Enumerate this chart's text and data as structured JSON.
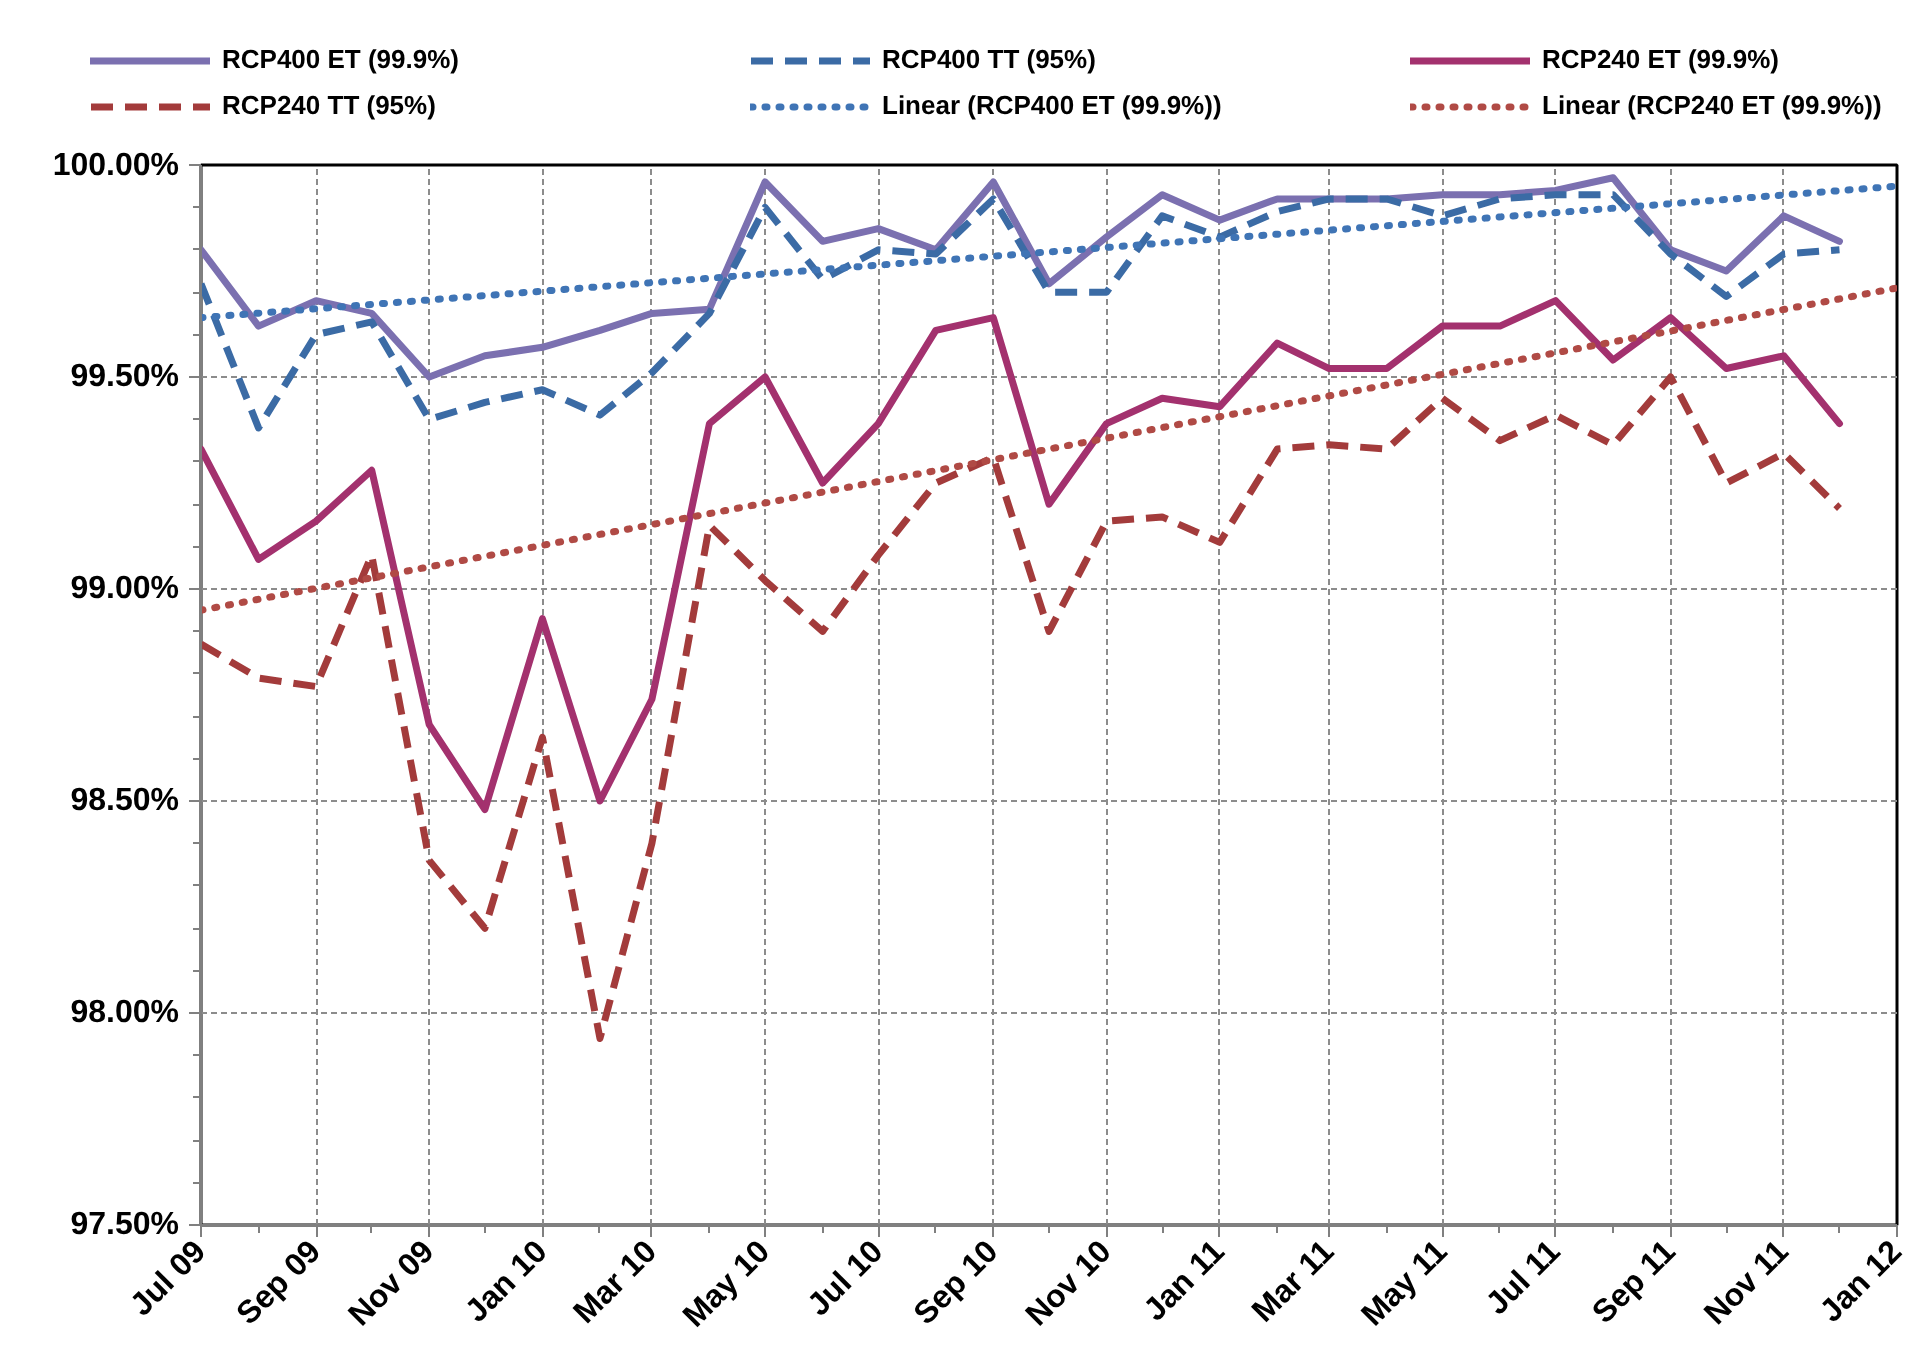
{
  "chart_data": {
    "type": "line",
    "x": [
      "2009-07",
      "2009-08",
      "2009-09",
      "2009-10",
      "2009-11",
      "2009-12",
      "2010-01",
      "2010-02",
      "2010-03",
      "2010-04",
      "2010-05",
      "2010-06",
      "2010-07",
      "2010-08",
      "2010-09",
      "2010-10",
      "2010-11",
      "2010-12",
      "2011-01",
      "2011-02",
      "2011-03",
      "2011-04",
      "2011-05",
      "2011-06",
      "2011-07",
      "2011-08",
      "2011-09",
      "2011-10",
      "2011-11",
      "2011-12"
    ],
    "xlim": [
      "2009-07",
      "2012-01"
    ],
    "xticks": [
      {
        "value": "2009-07",
        "label": "Jul 09"
      },
      {
        "value": "2009-08",
        "label": null
      },
      {
        "value": "2009-09",
        "label": "Sep 09"
      },
      {
        "value": "2009-10",
        "label": null
      },
      {
        "value": "2009-11",
        "label": "Nov 09"
      },
      {
        "value": "2009-12",
        "label": null
      },
      {
        "value": "2010-01",
        "label": "Jan 10"
      },
      {
        "value": "2010-02",
        "label": null
      },
      {
        "value": "2010-03",
        "label": "Mar 10"
      },
      {
        "value": "2010-04",
        "label": null
      },
      {
        "value": "2010-05",
        "label": "May 10"
      },
      {
        "value": "2010-06",
        "label": null
      },
      {
        "value": "2010-07",
        "label": "Jul 10"
      },
      {
        "value": "2010-08",
        "label": null
      },
      {
        "value": "2010-09",
        "label": "Sep 10"
      },
      {
        "value": "2010-10",
        "label": null
      },
      {
        "value": "2010-11",
        "label": "Nov 10"
      },
      {
        "value": "2010-12",
        "label": null
      },
      {
        "value": "2011-01",
        "label": "Jan 11"
      },
      {
        "value": "2011-02",
        "label": null
      },
      {
        "value": "2011-03",
        "label": "Mar 11"
      },
      {
        "value": "2011-04",
        "label": null
      },
      {
        "value": "2011-05",
        "label": "May 11"
      },
      {
        "value": "2011-06",
        "label": null
      },
      {
        "value": "2011-07",
        "label": "Jul 11"
      },
      {
        "value": "2011-08",
        "label": null
      },
      {
        "value": "2011-09",
        "label": "Sep 11"
      },
      {
        "value": "2011-10",
        "label": null
      },
      {
        "value": "2011-11",
        "label": "Nov 11"
      },
      {
        "value": "2011-12",
        "label": null
      },
      {
        "value": "2012-01",
        "label": "Jan 12"
      }
    ],
    "ylim": [
      97.5,
      100
    ],
    "yticks": [
      {
        "value": 97.5,
        "label": "97.50%"
      },
      {
        "value": 97.6,
        "label": null
      },
      {
        "value": 97.7,
        "label": null
      },
      {
        "value": 97.8,
        "label": null
      },
      {
        "value": 97.9,
        "label": null
      },
      {
        "value": 98.0,
        "label": "98.00%"
      },
      {
        "value": 98.1,
        "label": null
      },
      {
        "value": 98.2,
        "label": null
      },
      {
        "value": 98.3,
        "label": null
      },
      {
        "value": 98.4,
        "label": null
      },
      {
        "value": 98.5,
        "label": "98.50%"
      },
      {
        "value": 98.6,
        "label": null
      },
      {
        "value": 98.7,
        "label": null
      },
      {
        "value": 98.8,
        "label": null
      },
      {
        "value": 98.9,
        "label": null
      },
      {
        "value": 99.0,
        "label": "99.00%"
      },
      {
        "value": 99.1,
        "label": null
      },
      {
        "value": 99.2,
        "label": null
      },
      {
        "value": 99.3,
        "label": null
      },
      {
        "value": 99.4,
        "label": null
      },
      {
        "value": 99.5,
        "label": "99.50%"
      },
      {
        "value": 99.6,
        "label": null
      },
      {
        "value": 99.7,
        "label": null
      },
      {
        "value": 99.8,
        "label": null
      },
      {
        "value": 99.9,
        "label": null
      },
      {
        "value": 100.0,
        "label": "100.00%"
      }
    ],
    "grid": true,
    "legend": "top",
    "series": [
      {
        "name": "RCP400 ET (99.9%)",
        "color": "#7b70b0",
        "line_style": "solid",
        "values": [
          99.8,
          99.62,
          99.68,
          99.65,
          99.5,
          99.55,
          99.57,
          99.61,
          99.65,
          99.66,
          99.96,
          99.82,
          99.85,
          99.8,
          99.96,
          99.72,
          99.83,
          99.93,
          99.87,
          99.92,
          99.92,
          99.92,
          99.93,
          99.93,
          99.94,
          99.97,
          99.8,
          99.75,
          99.88,
          99.82
        ]
      },
      {
        "name": "RCP400 TT (95%)",
        "color": "#3b6ba5",
        "line_style": "dashed",
        "values": [
          99.72,
          99.38,
          99.6,
          99.63,
          99.4,
          99.44,
          99.47,
          99.41,
          99.51,
          99.65,
          99.9,
          99.73,
          99.8,
          99.79,
          99.92,
          99.7,
          99.7,
          99.88,
          99.83,
          99.89,
          99.92,
          99.92,
          99.88,
          99.92,
          99.93,
          99.93,
          99.79,
          99.69,
          99.79,
          99.8
        ]
      },
      {
        "name": "RCP240 ET (99.9%)",
        "color": "#a3316e",
        "line_style": "solid",
        "values": [
          99.33,
          99.07,
          99.16,
          99.28,
          98.68,
          98.48,
          98.93,
          98.5,
          98.74,
          99.39,
          99.5,
          99.25,
          99.39,
          99.61,
          99.64,
          99.2,
          99.39,
          99.45,
          99.43,
          99.58,
          99.52,
          99.52,
          99.62,
          99.62,
          99.68,
          99.54,
          99.64,
          99.52,
          99.55,
          99.39
        ]
      },
      {
        "name": "RCP240 TT (95%)",
        "color": "#a33b3b",
        "line_style": "dashed",
        "values": [
          98.87,
          98.79,
          98.77,
          99.08,
          98.36,
          98.2,
          98.65,
          97.94,
          98.4,
          99.15,
          99.02,
          98.9,
          99.08,
          99.25,
          99.31,
          98.9,
          99.16,
          99.17,
          99.11,
          99.33,
          99.34,
          99.33,
          99.45,
          99.35,
          99.41,
          99.34,
          99.5,
          99.25,
          99.32,
          99.19
        ]
      },
      {
        "name": "Linear (RCP400 ET (99.9%))",
        "type": "line",
        "color": "#3f74b5",
        "line_style": "dotted",
        "x": [
          "2009-07",
          "2012-01"
        ],
        "values": [
          99.64,
          99.95
        ]
      },
      {
        "name": "Linear (RCP240 ET (99.9%))",
        "type": "line",
        "color": "#b04a45",
        "line_style": "dotted",
        "x": [
          "2009-07",
          "2012-01"
        ],
        "values": [
          98.95,
          99.71
        ]
      }
    ]
  }
}
